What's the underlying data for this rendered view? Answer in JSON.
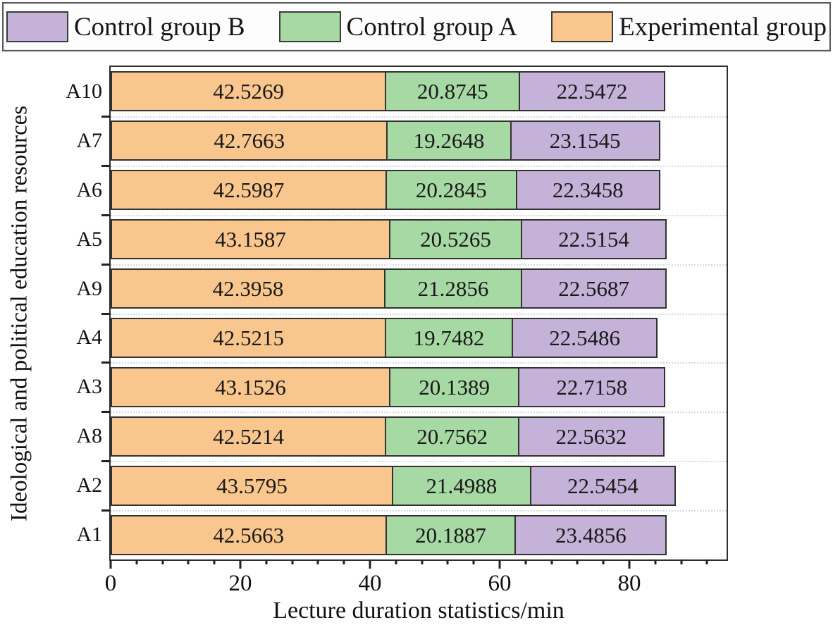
{
  "legend": {
    "items": [
      {
        "label": "Control group B",
        "color": "#c4b2d8"
      },
      {
        "label": "Control group A",
        "color": "#a6d9a3"
      },
      {
        "label": "Experimental group",
        "color": "#f9c78e"
      }
    ]
  },
  "chart_data": {
    "type": "bar",
    "orientation": "horizontal",
    "stacked": true,
    "title": "",
    "xlabel": "Lecture duration statistics/min",
    "ylabel": "Ideological and political education resources",
    "categories": [
      "A10",
      "A7",
      "A6",
      "A5",
      "A9",
      "A4",
      "A3",
      "A8",
      "A2",
      "A1"
    ],
    "series": [
      {
        "name": "Experimental group",
        "color": "#f9c78e",
        "values": [
          42.5269,
          42.7663,
          42.5987,
          43.1587,
          42.3958,
          42.5215,
          43.1526,
          42.5214,
          43.5795,
          42.5663
        ]
      },
      {
        "name": "Control group A",
        "color": "#a6d9a3",
        "values": [
          20.8745,
          19.2648,
          20.2845,
          20.5265,
          21.2856,
          19.7482,
          20.1389,
          20.7562,
          21.4988,
          20.1887
        ]
      },
      {
        "name": "Control group B",
        "color": "#c4b2d8",
        "values": [
          22.5472,
          23.1545,
          22.3458,
          22.5154,
          22.5687,
          22.5486,
          22.7158,
          22.5632,
          22.5454,
          23.4856
        ]
      }
    ],
    "value_decimals": 4,
    "xlim": [
      0,
      95
    ],
    "x_major_ticks": [
      0,
      20,
      40,
      60,
      80
    ],
    "x_minor_step": 4,
    "grid": "horizontal-dotted",
    "legend_position": "top"
  }
}
